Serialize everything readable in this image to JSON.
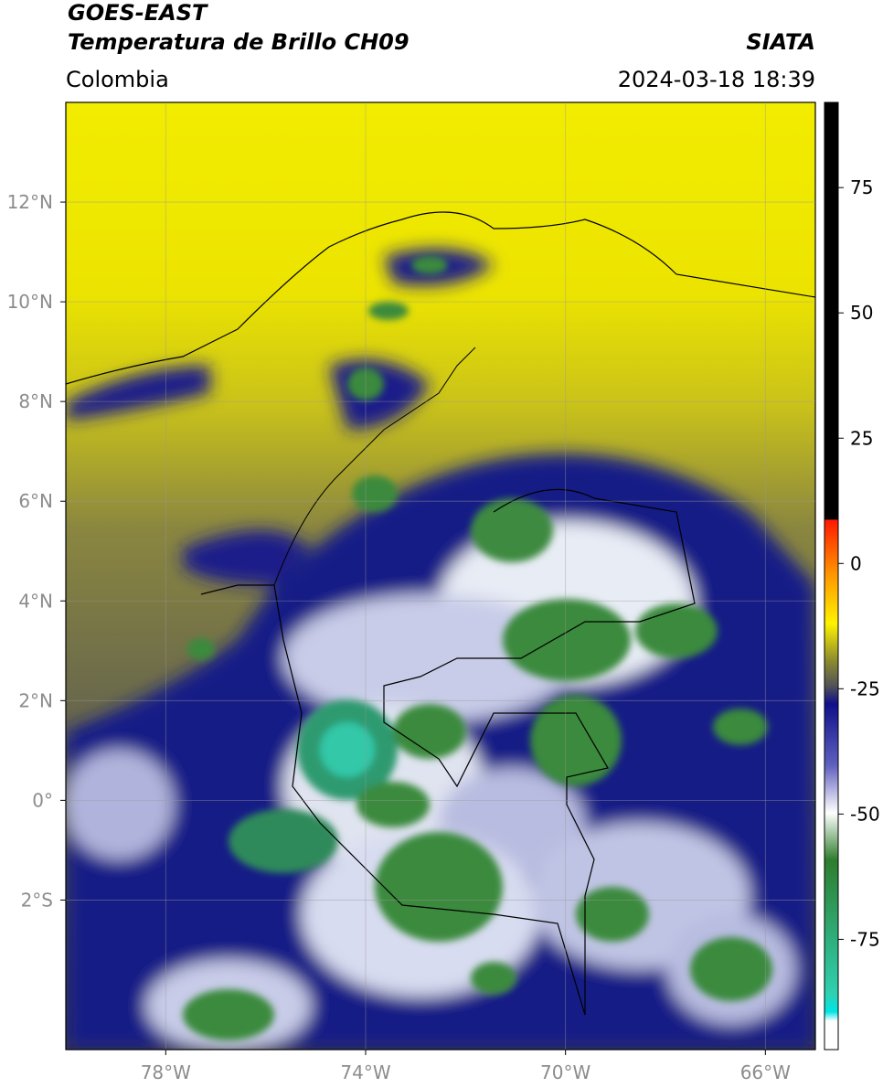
{
  "header": {
    "title_line1": "GOES-EAST",
    "title_line2": "Temperatura de Brillo CH09",
    "source": "SIATA",
    "region": "Colombia",
    "datetime": "2024-03-18 18:39"
  },
  "map": {
    "lon_range": [
      -80,
      -65
    ],
    "lat_range": [
      -5,
      14
    ],
    "lon_ticks": [
      {
        "value": -78,
        "label": "78°W"
      },
      {
        "value": -74,
        "label": "74°W"
      },
      {
        "value": -70,
        "label": "70°W"
      },
      {
        "value": -66,
        "label": "66°W"
      }
    ],
    "lat_ticks": [
      {
        "value": 12,
        "label": "12°N"
      },
      {
        "value": 10,
        "label": "10°N"
      },
      {
        "value": 8,
        "label": "8°N"
      },
      {
        "value": 6,
        "label": "6°N"
      },
      {
        "value": 4,
        "label": "4°N"
      },
      {
        "value": 2,
        "label": "2°N"
      },
      {
        "value": 0,
        "label": "0°"
      },
      {
        "value": -2,
        "label": "2°S"
      }
    ]
  },
  "colorbar": {
    "range": [
      -97,
      92
    ],
    "ticks": [
      75,
      50,
      25,
      0,
      -25,
      -50,
      -75
    ]
  }
}
